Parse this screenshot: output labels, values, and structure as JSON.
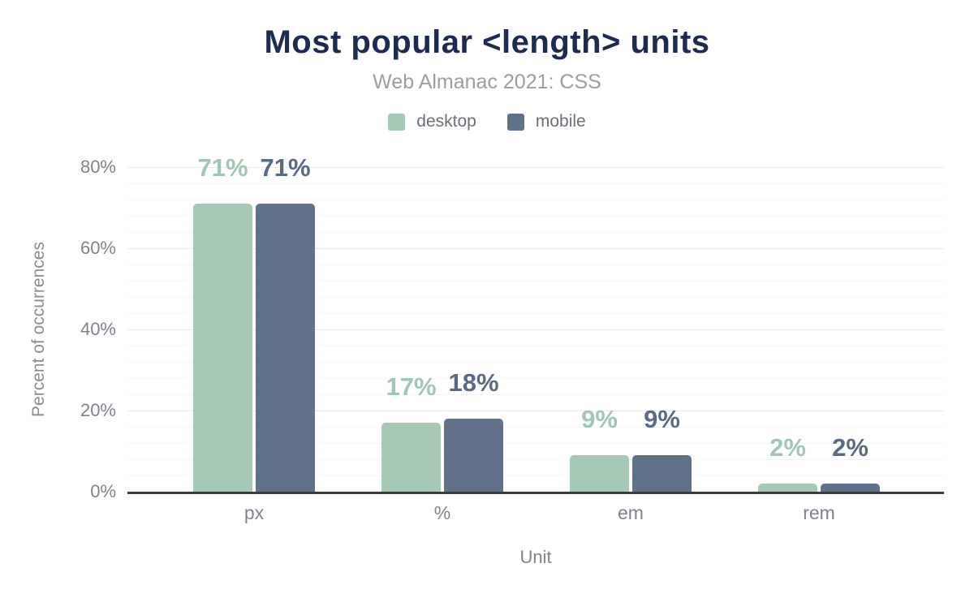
{
  "header": {
    "title": "Most popular <length> units",
    "subtitle": "Web Almanac 2021: CSS"
  },
  "legend": {
    "items": [
      {
        "label": "desktop",
        "color": "#a5c9b4"
      },
      {
        "label": "mobile",
        "color": "#60718a"
      }
    ]
  },
  "chart_data": {
    "type": "bar",
    "title": "Most popular <length> units",
    "subtitle": "Web Almanac 2021: CSS",
    "categories": [
      "px",
      "%",
      "em",
      "rem"
    ],
    "series": [
      {
        "name": "desktop",
        "color": "#a5c9b4",
        "label_color": "#a2c7b1",
        "values": [
          71,
          17,
          9,
          2
        ],
        "data_labels": [
          "71%",
          "17%",
          "9%",
          "2%"
        ]
      },
      {
        "name": "mobile",
        "color": "#60718a",
        "label_color": "#596a85",
        "values": [
          71,
          18,
          9,
          2
        ],
        "data_labels": [
          "71%",
          "18%",
          "9%",
          "2%"
        ]
      }
    ],
    "xlabel": "Unit",
    "ylabel": "Percent of occurrences",
    "ylim": [
      0,
      80
    ],
    "yticks": [
      {
        "value": 0,
        "label": "0%"
      },
      {
        "value": 20,
        "label": "20%"
      },
      {
        "value": 40,
        "label": "40%"
      },
      {
        "value": 60,
        "label": "60%"
      },
      {
        "value": 80,
        "label": "80%"
      }
    ],
    "major_grid_step": 20,
    "minor_grid_step": 4,
    "grid": "on",
    "legend_position": "top"
  },
  "colors": {
    "title": "#1d2b51",
    "subtitle": "#9b9ea3",
    "axis_text": "#7e838c",
    "axis_line": "#3b3c3e",
    "grid_major": "#e8eaec",
    "grid_minor": "#f5f5f6",
    "background": "#ffffff"
  }
}
